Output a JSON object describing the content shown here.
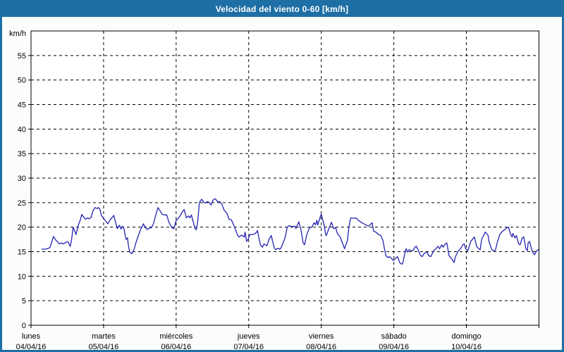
{
  "window": {
    "title": "Velocidad del viento 0-60 [km/h]"
  },
  "colors": {
    "titlebar": "#1e6fa5",
    "frame": "#1e6fa5",
    "background": "#fafdfa",
    "plot_background": "#ffffff",
    "plot_border": "#000000",
    "grid": "#000000",
    "line": "#2424b2",
    "title_text": "#ffffff",
    "label_text": "#000000"
  },
  "chart_data": {
    "type": "line",
    "title": "Velocidad del viento 0-60 [km/h]",
    "ylabel": "km/h",
    "xlabel": "",
    "ylim": [
      0,
      60
    ],
    "ytick_step": 5,
    "yticks": [
      0,
      5,
      10,
      15,
      20,
      25,
      30,
      35,
      40,
      45,
      50,
      55
    ],
    "grid": true,
    "legend": "none",
    "x_axis_days": [
      {
        "weekday": "lunes",
        "date": "04/04/16"
      },
      {
        "weekday": "martes",
        "date": "05/04/16"
      },
      {
        "weekday": "miércoles",
        "date": "06/04/16"
      },
      {
        "weekday": "jueves",
        "date": "07/04/16"
      },
      {
        "weekday": "viernes",
        "date": "08/04/16"
      },
      {
        "weekday": "sábado",
        "date": "09/04/16"
      },
      {
        "weekday": "domingo",
        "date": "10/04/16"
      }
    ],
    "series": [
      {
        "name": "Velocidad del viento",
        "color": "#2424b2",
        "x_unit": "days from start (0 = lunes 04/04/16)",
        "y_unit": "km/h",
        "points": [
          [
            0.15,
            15.5
          ],
          [
            0.19,
            15.5
          ],
          [
            0.22,
            15.6
          ],
          [
            0.26,
            15.8
          ],
          [
            0.29,
            17.2
          ],
          [
            0.31,
            18.1
          ],
          [
            0.34,
            17.4
          ],
          [
            0.36,
            17.1
          ],
          [
            0.39,
            16.6
          ],
          [
            0.42,
            16.8
          ],
          [
            0.44,
            16.6
          ],
          [
            0.46,
            16.7
          ],
          [
            0.49,
            17.0
          ],
          [
            0.51,
            17.0
          ],
          [
            0.54,
            16.1
          ],
          [
            0.56,
            17.5
          ],
          [
            0.58,
            20.0
          ],
          [
            0.6,
            19.3
          ],
          [
            0.62,
            18.5
          ],
          [
            0.65,
            20.3
          ],
          [
            0.68,
            21.5
          ],
          [
            0.7,
            22.6
          ],
          [
            0.73,
            22.0
          ],
          [
            0.75,
            21.6
          ],
          [
            0.78,
            21.9
          ],
          [
            0.8,
            21.7
          ],
          [
            0.83,
            22.0
          ],
          [
            0.85,
            23.2
          ],
          [
            0.88,
            24.0
          ],
          [
            0.91,
            23.8
          ],
          [
            0.93,
            24.0
          ],
          [
            0.95,
            23.6
          ],
          [
            0.97,
            22.4
          ],
          [
            1.0,
            21.8
          ],
          [
            1.03,
            21.2
          ],
          [
            1.06,
            20.7
          ],
          [
            1.09,
            21.5
          ],
          [
            1.12,
            22.0
          ],
          [
            1.14,
            22.4
          ],
          [
            1.17,
            20.8
          ],
          [
            1.19,
            19.7
          ],
          [
            1.22,
            20.4
          ],
          [
            1.24,
            19.6
          ],
          [
            1.26,
            20.2
          ],
          [
            1.28,
            19.8
          ],
          [
            1.31,
            17.5
          ],
          [
            1.33,
            17.8
          ],
          [
            1.34,
            16.5
          ],
          [
            1.36,
            14.9
          ],
          [
            1.39,
            14.6
          ],
          [
            1.42,
            15.5
          ],
          [
            1.45,
            17.0
          ],
          [
            1.48,
            18.3
          ],
          [
            1.51,
            19.5
          ],
          [
            1.55,
            20.7
          ],
          [
            1.57,
            20.0
          ],
          [
            1.6,
            19.5
          ],
          [
            1.63,
            19.8
          ],
          [
            1.66,
            19.9
          ],
          [
            1.69,
            20.8
          ],
          [
            1.71,
            22.0
          ],
          [
            1.73,
            23.0
          ],
          [
            1.75,
            24.0
          ],
          [
            1.78,
            23.3
          ],
          [
            1.81,
            22.6
          ],
          [
            1.84,
            22.5
          ],
          [
            1.87,
            22.5
          ],
          [
            1.9,
            21.0
          ],
          [
            1.94,
            19.9
          ],
          [
            1.97,
            19.7
          ],
          [
            2.0,
            21.4
          ],
          [
            2.02,
            21.6
          ],
          [
            2.05,
            22.2
          ],
          [
            2.08,
            23.0
          ],
          [
            2.11,
            23.6
          ],
          [
            2.14,
            21.9
          ],
          [
            2.17,
            22.3
          ],
          [
            2.19,
            21.9
          ],
          [
            2.21,
            22.5
          ],
          [
            2.24,
            20.8
          ],
          [
            2.26,
            19.7
          ],
          [
            2.28,
            19.5
          ],
          [
            2.3,
            21.5
          ],
          [
            2.32,
            25.0
          ],
          [
            2.35,
            25.7
          ],
          [
            2.38,
            25.1
          ],
          [
            2.4,
            24.9
          ],
          [
            2.43,
            25.2
          ],
          [
            2.46,
            25.0
          ],
          [
            2.48,
            24.5
          ],
          [
            2.51,
            25.6
          ],
          [
            2.54,
            25.8
          ],
          [
            2.57,
            25.2
          ],
          [
            2.6,
            25.2
          ],
          [
            2.63,
            24.7
          ],
          [
            2.66,
            23.5
          ],
          [
            2.7,
            22.8
          ],
          [
            2.73,
            21.6
          ],
          [
            2.76,
            21.5
          ],
          [
            2.8,
            20.2
          ],
          [
            2.83,
            19.0
          ],
          [
            2.85,
            18.3
          ],
          [
            2.87,
            18.0
          ],
          [
            2.9,
            18.4
          ],
          [
            2.94,
            18.0
          ],
          [
            2.95,
            19.0
          ],
          [
            2.97,
            17.1
          ],
          [
            2.99,
            17.5
          ],
          [
            3.02,
            18.5
          ],
          [
            3.05,
            18.5
          ],
          [
            3.08,
            18.6
          ],
          [
            3.11,
            19.0
          ],
          [
            3.12,
            19.3
          ],
          [
            3.16,
            16.4
          ],
          [
            3.19,
            15.9
          ],
          [
            3.21,
            16.6
          ],
          [
            3.25,
            16.2
          ],
          [
            3.28,
            17.5
          ],
          [
            3.31,
            18.3
          ],
          [
            3.35,
            15.9
          ],
          [
            3.37,
            15.4
          ],
          [
            3.4,
            15.7
          ],
          [
            3.43,
            15.5
          ],
          [
            3.45,
            15.9
          ],
          [
            3.5,
            17.8
          ],
          [
            3.53,
            19.9
          ],
          [
            3.55,
            20.3
          ],
          [
            3.58,
            20.2
          ],
          [
            3.6,
            20.1
          ],
          [
            3.64,
            20.2
          ],
          [
            3.65,
            19.7
          ],
          [
            3.69,
            21.1
          ],
          [
            3.72,
            19.5
          ],
          [
            3.75,
            16.8
          ],
          [
            3.77,
            16.4
          ],
          [
            3.8,
            18.5
          ],
          [
            3.84,
            19.9
          ],
          [
            3.87,
            20.0
          ],
          [
            3.9,
            20.9
          ],
          [
            3.92,
            20.5
          ],
          [
            3.94,
            21.4
          ],
          [
            3.95,
            20.4
          ],
          [
            3.99,
            22.3
          ],
          [
            4.0,
            22.6
          ],
          [
            4.02,
            21.5
          ],
          [
            4.04,
            20.4
          ],
          [
            4.06,
            18.5
          ],
          [
            4.07,
            18.3
          ],
          [
            4.11,
            19.9
          ],
          [
            4.14,
            21.0
          ],
          [
            4.17,
            19.7
          ],
          [
            4.2,
            19.9
          ],
          [
            4.22,
            18.7
          ],
          [
            4.26,
            18.0
          ],
          [
            4.29,
            16.8
          ],
          [
            4.32,
            15.6
          ],
          [
            4.36,
            17.3
          ],
          [
            4.38,
            19.9
          ],
          [
            4.4,
            21.6
          ],
          [
            4.41,
            21.9
          ],
          [
            4.45,
            21.8
          ],
          [
            4.48,
            21.9
          ],
          [
            4.51,
            21.4
          ],
          [
            4.56,
            20.9
          ],
          [
            4.61,
            20.5
          ],
          [
            4.65,
            20.2
          ],
          [
            4.68,
            20.6
          ],
          [
            4.7,
            20.9
          ],
          [
            4.72,
            19.2
          ],
          [
            4.75,
            19.0
          ],
          [
            4.79,
            18.5
          ],
          [
            4.82,
            18.3
          ],
          [
            4.85,
            17.3
          ],
          [
            4.87,
            15.6
          ],
          [
            4.89,
            14.2
          ],
          [
            4.92,
            13.8
          ],
          [
            4.94,
            14.0
          ],
          [
            4.97,
            13.6
          ],
          [
            4.99,
            13.2
          ],
          [
            5.01,
            13.4
          ],
          [
            5.03,
            13.7
          ],
          [
            5.05,
            14.0
          ],
          [
            5.08,
            12.8
          ],
          [
            5.1,
            12.5
          ],
          [
            5.12,
            12.5
          ],
          [
            5.16,
            15.2
          ],
          [
            5.17,
            15.6
          ],
          [
            5.19,
            14.9
          ],
          [
            5.21,
            15.4
          ],
          [
            5.24,
            15.2
          ],
          [
            5.27,
            15.3
          ],
          [
            5.29,
            15.9
          ],
          [
            5.31,
            16.1
          ],
          [
            5.34,
            15.2
          ],
          [
            5.37,
            14.2
          ],
          [
            5.39,
            14.0
          ],
          [
            5.42,
            14.7
          ],
          [
            5.46,
            14.9
          ],
          [
            5.48,
            14.2
          ],
          [
            5.51,
            14.0
          ],
          [
            5.55,
            15.2
          ],
          [
            5.58,
            15.6
          ],
          [
            5.61,
            16.1
          ],
          [
            5.63,
            15.6
          ],
          [
            5.66,
            16.4
          ],
          [
            5.68,
            15.9
          ],
          [
            5.71,
            16.6
          ],
          [
            5.73,
            16.8
          ],
          [
            5.76,
            14.2
          ],
          [
            5.8,
            13.5
          ],
          [
            5.83,
            12.8
          ],
          [
            5.85,
            14.0
          ],
          [
            5.89,
            15.2
          ],
          [
            5.92,
            15.6
          ],
          [
            5.95,
            16.4
          ],
          [
            5.97,
            16.6
          ],
          [
            5.99,
            15.6
          ],
          [
            6.02,
            15.2
          ],
          [
            6.06,
            17.1
          ],
          [
            6.11,
            18.0
          ],
          [
            6.14,
            16.1
          ],
          [
            6.17,
            15.6
          ],
          [
            6.19,
            15.4
          ],
          [
            6.21,
            17.5
          ],
          [
            6.25,
            18.7
          ],
          [
            6.26,
            19.0
          ],
          [
            6.3,
            18.3
          ],
          [
            6.31,
            17.1
          ],
          [
            6.35,
            15.4
          ],
          [
            6.38,
            15.2
          ],
          [
            6.4,
            15.3
          ],
          [
            6.43,
            17.1
          ],
          [
            6.46,
            18.5
          ],
          [
            6.5,
            19.2
          ],
          [
            6.53,
            19.5
          ],
          [
            6.56,
            19.9
          ],
          [
            6.58,
            20.0
          ],
          [
            6.61,
            18.5
          ],
          [
            6.63,
            18.0
          ],
          [
            6.64,
            18.7
          ],
          [
            6.67,
            17.8
          ],
          [
            6.69,
            18.3
          ],
          [
            6.72,
            16.6
          ],
          [
            6.74,
            16.4
          ],
          [
            6.77,
            17.8
          ],
          [
            6.79,
            18.0
          ],
          [
            6.82,
            15.6
          ],
          [
            6.84,
            15.2
          ],
          [
            6.85,
            16.8
          ],
          [
            6.87,
            17.1
          ],
          [
            6.9,
            15.4
          ],
          [
            6.92,
            14.7
          ],
          [
            6.94,
            14.4
          ],
          [
            6.97,
            15.2
          ],
          [
            6.99,
            15.4
          ]
        ]
      }
    ]
  }
}
